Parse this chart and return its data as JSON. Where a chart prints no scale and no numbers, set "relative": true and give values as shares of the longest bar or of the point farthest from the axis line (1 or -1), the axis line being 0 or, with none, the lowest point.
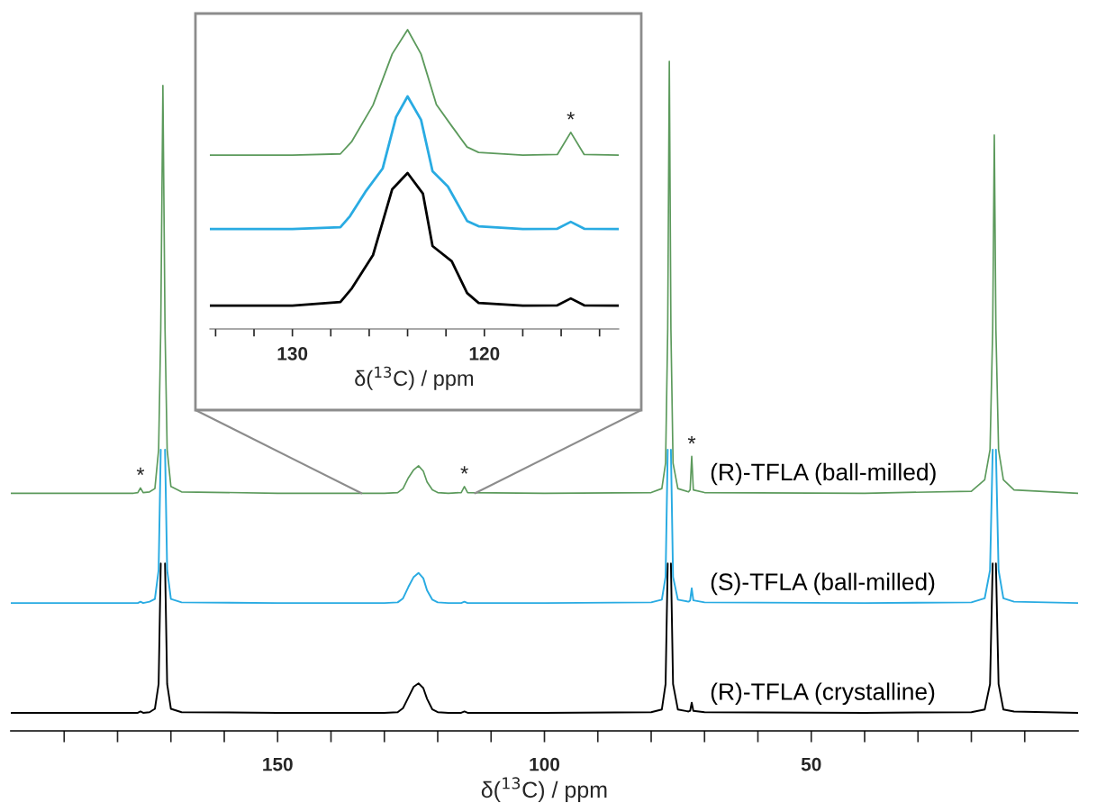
{
  "chart_data": [
    {
      "type": "line",
      "relative": true,
      "xlabel": "δ($^{13}$C) / ppm",
      "xlim": [
        200,
        0
      ],
      "xticks": [
        {
          "value": 190,
          "label": null
        },
        {
          "value": 180,
          "label": null
        },
        {
          "value": 170,
          "label": null
        },
        {
          "value": 160,
          "label": null
        },
        150,
        {
          "value": 140,
          "label": null
        },
        {
          "value": 130,
          "label": null
        },
        {
          "value": 120,
          "label": null
        },
        {
          "value": 110,
          "label": null
        },
        100,
        {
          "value": 90,
          "label": null
        },
        {
          "value": 80,
          "label": null
        },
        {
          "value": 70,
          "label": null
        },
        {
          "value": 60,
          "label": null
        },
        50,
        {
          "value": 40,
          "label": null
        },
        {
          "value": 30,
          "label": null
        },
        {
          "value": 20,
          "label": null
        },
        {
          "value": 10,
          "label": null
        }
      ],
      "grid": false,
      "legend": false,
      "annotations": [
        {
          "text": "*",
          "x": 175.7,
          "y": 0.363
        },
        {
          "text": "*",
          "x": 115.0,
          "y": 0.365
        },
        {
          "text": "*",
          "x": 72.4,
          "y": 0.41
        }
      ],
      "series": [
        {
          "name": "(R)-TFLA (ball-milled)",
          "color": "#5c9a5c",
          "x": [
            200,
            180,
            177,
            176.2,
            175.7,
            175.2,
            174,
            173,
            172.3,
            171.9,
            171.5,
            171.1,
            170.7,
            170,
            168,
            150,
            130,
            127.5,
            126.5,
            125.5,
            124.5,
            123.6,
            122.7,
            122,
            121,
            120,
            118,
            115.6,
            115.0,
            114.4,
            100,
            80,
            78,
            77.3,
            76.9,
            76.6,
            76.3,
            75.9,
            75,
            73,
            72.7,
            72.4,
            72.1,
            70,
            40,
            20,
            17.5,
            16.5,
            16.0,
            15.7,
            15.4,
            14.9,
            14,
            12,
            0
          ],
          "values": [
            0.355,
            0.355,
            0.355,
            0.356,
            0.363,
            0.356,
            0.357,
            0.362,
            0.42,
            0.6,
            0.964,
            0.6,
            0.42,
            0.365,
            0.357,
            0.355,
            0.355,
            0.356,
            0.362,
            0.378,
            0.39,
            0.396,
            0.388,
            0.372,
            0.36,
            0.356,
            0.355,
            0.356,
            0.365,
            0.356,
            0.355,
            0.356,
            0.362,
            0.4,
            0.6,
            1.0,
            0.6,
            0.4,
            0.362,
            0.357,
            0.36,
            0.41,
            0.36,
            0.356,
            0.355,
            0.358,
            0.375,
            0.42,
            0.6,
            0.89,
            0.6,
            0.42,
            0.375,
            0.36,
            0.355
          ]
        },
        {
          "name": "(S)-TFLA (ball-milled)",
          "color": "#29abe2",
          "x": [
            200,
            180,
            177,
            176.2,
            175.7,
            175.2,
            174,
            173,
            172.3,
            171.9,
            171.5,
            171.1,
            170.7,
            170,
            168,
            150,
            130,
            127.5,
            126.5,
            125.5,
            124.5,
            123.6,
            122.7,
            122,
            121,
            120,
            118,
            115.6,
            115.0,
            114.4,
            100,
            80,
            78,
            77.3,
            76.9,
            76.6,
            76.3,
            75.9,
            75,
            73,
            72.7,
            72.4,
            72.1,
            70,
            40,
            20,
            17.5,
            16.5,
            16.0,
            15.7,
            15.4,
            14.9,
            14,
            12,
            0
          ],
          "values": [
            0.191,
            0.191,
            0.191,
            0.191,
            0.193,
            0.191,
            0.193,
            0.197,
            0.24,
            0.42,
            null,
            0.42,
            0.24,
            0.197,
            0.192,
            0.191,
            0.191,
            0.192,
            0.198,
            0.215,
            0.23,
            0.236,
            0.228,
            0.21,
            0.196,
            0.192,
            0.191,
            0.191,
            0.193,
            0.191,
            0.191,
            0.192,
            0.196,
            0.23,
            0.42,
            null,
            0.42,
            0.23,
            0.196,
            0.193,
            0.195,
            0.213,
            0.195,
            0.192,
            0.191,
            0.192,
            0.198,
            0.24,
            0.42,
            null,
            0.42,
            0.24,
            0.198,
            0.193,
            0.191
          ]
        },
        {
          "name": "(R)-TFLA (crystalline)",
          "color": "#000000",
          "x": [
            200,
            180,
            177,
            176.2,
            175.7,
            175.2,
            174,
            173,
            172.3,
            171.9,
            171.5,
            171.1,
            170.7,
            170,
            168,
            150,
            130,
            127.5,
            126.5,
            125.5,
            124.5,
            123.6,
            122.7,
            122,
            121,
            120,
            118,
            115.6,
            115.0,
            114.4,
            100,
            80,
            78,
            77.3,
            76.9,
            76.6,
            76.3,
            75.9,
            75,
            73,
            72.7,
            72.4,
            72.1,
            70,
            40,
            20,
            17.5,
            16.5,
            16.0,
            15.7,
            15.4,
            14.9,
            14,
            12,
            0
          ],
          "values": [
            0.027,
            0.027,
            0.027,
            0.027,
            0.029,
            0.027,
            0.028,
            0.033,
            0.07,
            0.25,
            null,
            0.25,
            0.07,
            0.033,
            0.028,
            0.027,
            0.027,
            0.028,
            0.034,
            0.05,
            0.066,
            0.071,
            0.064,
            0.048,
            0.032,
            0.028,
            0.027,
            0.027,
            0.029,
            0.027,
            0.027,
            0.028,
            0.032,
            0.07,
            0.25,
            null,
            0.25,
            0.07,
            0.032,
            0.029,
            0.03,
            0.042,
            0.03,
            0.028,
            0.027,
            0.028,
            0.032,
            0.07,
            0.25,
            null,
            0.25,
            0.07,
            0.032,
            0.029,
            0.027
          ]
        }
      ]
    },
    {
      "type": "line",
      "relative": true,
      "xlabel": "δ($^{13}$C) / ppm",
      "xlim": [
        134.3,
        113
      ],
      "xticks": [
        {
          "value": 134,
          "label": null
        },
        {
          "value": 132,
          "label": null
        },
        130,
        {
          "value": 128,
          "label": null
        },
        {
          "value": 126,
          "label": null
        },
        {
          "value": 124,
          "label": null
        },
        {
          "value": 122,
          "label": null
        },
        120,
        {
          "value": 118,
          "label": null
        },
        {
          "value": 116,
          "label": null
        },
        {
          "value": 114,
          "label": null
        }
      ],
      "grid": false,
      "legend": false,
      "annotations": [
        {
          "text": "*",
          "x": 115.5,
          "y": 0.657
        }
      ],
      "series": [
        {
          "color": "#5c9a5c",
          "x": [
            134.3,
            130,
            127.5,
            126.9,
            125.8,
            124.8,
            124.0,
            123.3,
            122.5,
            121.7,
            120.9,
            120.3,
            118,
            116.2,
            115.5,
            114.8,
            113
          ],
          "values": [
            0.581,
            0.581,
            0.585,
            0.627,
            0.748,
            0.919,
            1.0,
            0.919,
            0.75,
            0.678,
            0.608,
            0.59,
            0.581,
            0.583,
            0.657,
            0.583,
            0.581
          ]
        },
        {
          "color": "#29abe2",
          "x": [
            134.3,
            130,
            127.5,
            127.0,
            126.2,
            125.3,
            124.6,
            124.0,
            123.3,
            122.7,
            121.9,
            120.9,
            120.3,
            118,
            116.2,
            115.5,
            114.8,
            113
          ],
          "values": [
            0.334,
            0.334,
            0.34,
            0.377,
            0.458,
            0.536,
            0.708,
            0.777,
            0.699,
            0.527,
            0.476,
            0.361,
            0.343,
            0.334,
            0.335,
            0.358,
            0.335,
            0.334
          ]
        },
        {
          "color": "#000000",
          "x": [
            134.3,
            130,
            127.5,
            126.9,
            125.8,
            124.8,
            124.0,
            123.2,
            122.7,
            121.7,
            120.9,
            120.3,
            118,
            116.2,
            115.5,
            114.8,
            113
          ],
          "values": [
            0.078,
            0.078,
            0.09,
            0.136,
            0.247,
            0.467,
            0.521,
            0.452,
            0.277,
            0.226,
            0.12,
            0.087,
            0.078,
            0.079,
            0.102,
            0.079,
            0.078
          ]
        }
      ]
    }
  ]
}
